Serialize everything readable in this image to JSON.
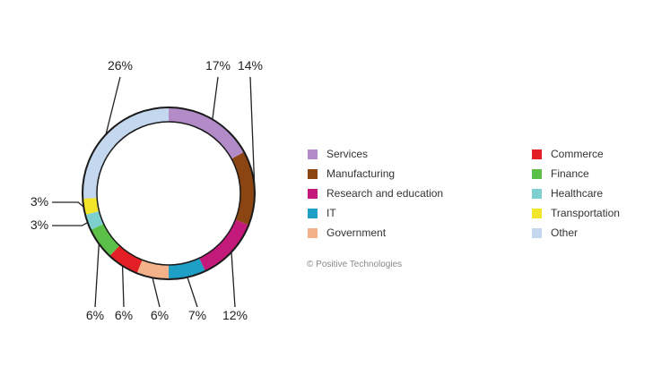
{
  "chart_data": {
    "type": "pie",
    "variant": "donut",
    "slices": [
      {
        "label": "Services",
        "value": 17,
        "display": "17%",
        "color": "#b28bc8"
      },
      {
        "label": "Manufacturing",
        "value": 14,
        "display": "14%",
        "color": "#8b4513"
      },
      {
        "label": "Research and education",
        "value": 12,
        "display": "12%",
        "color": "#c2197a"
      },
      {
        "label": "IT",
        "value": 7,
        "display": "7%",
        "color": "#1e9fc6"
      },
      {
        "label": "Government",
        "value": 6,
        "display": "6%",
        "color": "#f4b28b"
      },
      {
        "label": "Commerce",
        "value": 6,
        "display": "6%",
        "color": "#e31e24"
      },
      {
        "label": "Finance",
        "value": 6,
        "display": "6%",
        "color": "#5cbf47"
      },
      {
        "label": "Healthcare",
        "value": 3,
        "display": "3%",
        "color": "#7ecfcf"
      },
      {
        "label": "Transportation",
        "value": 3,
        "display": "3%",
        "color": "#f2e52a"
      },
      {
        "label": "Other",
        "value": 26,
        "display": "26%",
        "color": "#c3d7ee"
      }
    ],
    "legend_placement": "right"
  },
  "legend": {
    "col1": [
      "Services",
      "Manufacturing",
      "Research and education",
      "IT",
      "Government"
    ],
    "col2": [
      "Commerce",
      "Finance",
      "Healthcare",
      "Transportation",
      "Other"
    ]
  },
  "copyright": "© Positive Technologies"
}
